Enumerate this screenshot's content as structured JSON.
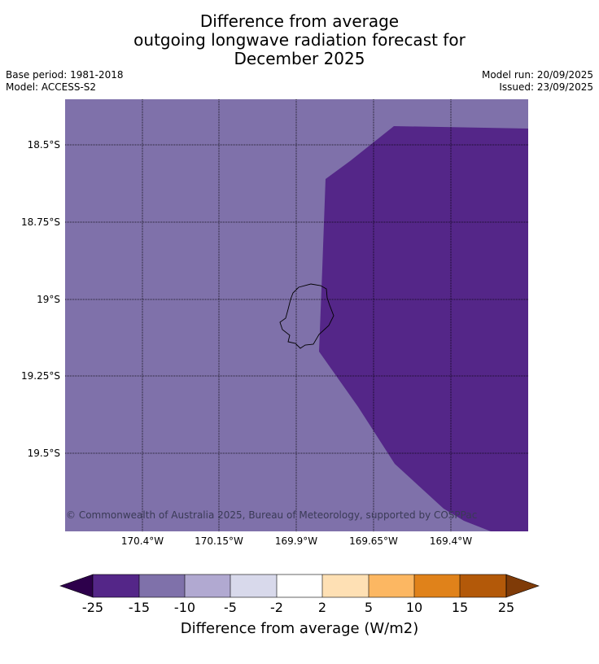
{
  "title": {
    "line1": "Difference from average",
    "line2": "outgoing longwave radiation forecast for",
    "line3": "December 2025"
  },
  "meta": {
    "base_period": "Base period: 1981-2018",
    "model": "Model: ACCESS-S2",
    "model_run": "Model run: 20/09/2025",
    "issued": "Issued: 23/09/2025"
  },
  "map": {
    "lat_labels": [
      "18.5°S",
      "18.75°S",
      "19°S",
      "19.25°S",
      "19.5°S"
    ],
    "lon_labels": [
      "170.4°W",
      "170.15°W",
      "169.9°W",
      "169.65°W",
      "169.4°W"
    ],
    "copyright": "© Commonwealth of Australia 2025, Bureau of Meteorology, supported by COSPPac",
    "background_color": "#7f71aa",
    "anomaly_color": "#542688"
  },
  "colorbar": {
    "ticks": [
      "-25",
      "-15",
      "-10",
      "-5",
      "-2",
      "2",
      "5",
      "10",
      "15",
      "25"
    ],
    "colors": [
      "#542688",
      "#7f71aa",
      "#b1a9d1",
      "#d8d9eb",
      "#ffffff",
      "#fee0b4",
      "#fcb762",
      "#e0821a",
      "#b35909"
    ],
    "under_color": "#2d004b",
    "over_color": "#7f3b08",
    "label": "Difference from average (W/m2)"
  }
}
